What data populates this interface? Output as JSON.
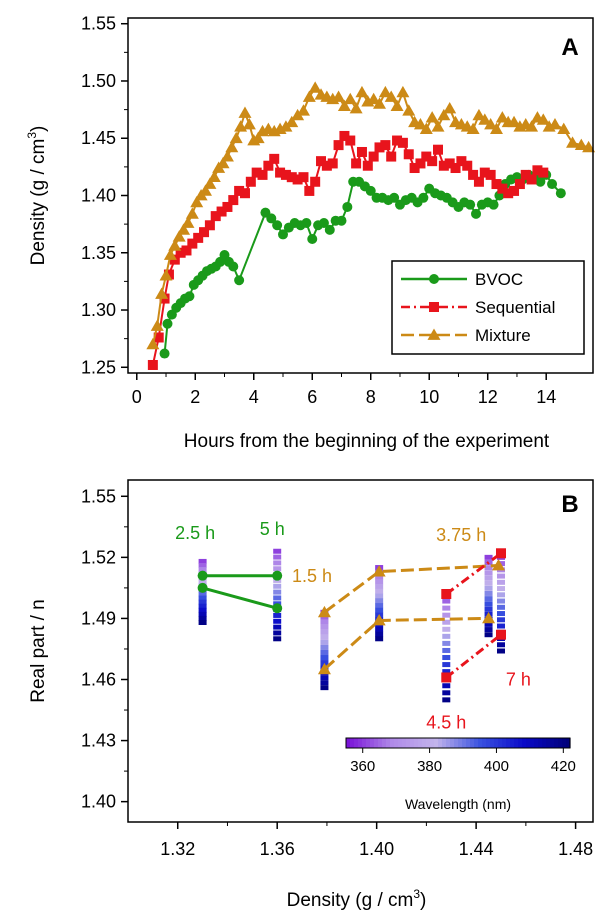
{
  "chart_data": [
    {
      "type": "line",
      "panel_label": "A",
      "xlabel": "Hours from the beginning of the experiment",
      "ylabel_main": "Density (g / cm",
      "ylabel_sup": "3",
      "ylabel_close": ")",
      "xlim": [
        -0.3,
        15.6
      ],
      "ylim": [
        1.245,
        1.555
      ],
      "xticks": [
        0,
        2,
        4,
        6,
        8,
        10,
        12,
        14
      ],
      "yticks": [
        1.25,
        1.3,
        1.35,
        1.4,
        1.45,
        1.5,
        1.55
      ],
      "ytick_labels": [
        "1.25",
        "1.30",
        "1.35",
        "1.40",
        "1.45",
        "1.50",
        "1.55"
      ],
      "legend_position": "bottom-right",
      "series": [
        {
          "name": "BVOC",
          "color": "#1a9a1a",
          "marker": "circle",
          "dash": "solid",
          "x": [
            0.95,
            1.05,
            1.2,
            1.35,
            1.5,
            1.65,
            1.8,
            1.95,
            2.1,
            2.25,
            2.4,
            2.55,
            2.7,
            2.85,
            3.0,
            3.15,
            3.3,
            3.5,
            4.4,
            4.6,
            4.8,
            5.0,
            5.2,
            5.4,
            5.6,
            5.8,
            6.0,
            6.2,
            6.4,
            6.6,
            6.8,
            7.0,
            7.2,
            7.4,
            7.6,
            7.8,
            8.0,
            8.2,
            8.4,
            8.6,
            8.8,
            9.0,
            9.2,
            9.4,
            9.6,
            9.8,
            10.0,
            10.2,
            10.4,
            10.6,
            10.8,
            11.0,
            11.2,
            11.4,
            11.6,
            11.8,
            12.0,
            12.2,
            12.4,
            12.6,
            12.8,
            13.0,
            13.2,
            13.4,
            13.6,
            13.8,
            14.0,
            14.2,
            14.5
          ],
          "y": [
            1.262,
            1.288,
            1.296,
            1.302,
            1.306,
            1.31,
            1.312,
            1.322,
            1.326,
            1.33,
            1.334,
            1.336,
            1.338,
            1.342,
            1.348,
            1.342,
            1.338,
            1.326,
            1.385,
            1.38,
            1.374,
            1.366,
            1.372,
            1.376,
            1.374,
            1.376,
            1.362,
            1.374,
            1.376,
            1.37,
            1.378,
            1.378,
            1.39,
            1.412,
            1.412,
            1.408,
            1.404,
            1.398,
            1.398,
            1.396,
            1.398,
            1.392,
            1.396,
            1.398,
            1.394,
            1.398,
            1.406,
            1.402,
            1.4,
            1.398,
            1.394,
            1.39,
            1.394,
            1.392,
            1.384,
            1.392,
            1.394,
            1.392,
            1.4,
            1.41,
            1.414,
            1.416,
            1.414,
            1.418,
            1.416,
            1.412,
            1.418,
            1.41,
            1.402
          ]
        },
        {
          "name": "Sequential",
          "color": "#e8141c",
          "marker": "square",
          "dash": "dashdot",
          "x": [
            0.55,
            0.75,
            0.95,
            1.1,
            1.3,
            1.5,
            1.7,
            1.9,
            2.1,
            2.3,
            2.5,
            2.7,
            2.9,
            3.1,
            3.3,
            3.5,
            3.7,
            3.9,
            4.1,
            4.3,
            4.5,
            4.7,
            4.9,
            5.1,
            5.3,
            5.5,
            5.7,
            5.9,
            6.1,
            6.3,
            6.5,
            6.7,
            6.9,
            7.1,
            7.3,
            7.5,
            7.7,
            7.9,
            8.1,
            8.3,
            8.5,
            8.7,
            8.9,
            9.1,
            9.3,
            9.5,
            9.7,
            9.9,
            10.1,
            10.3,
            10.5,
            10.7,
            10.9,
            11.1,
            11.3,
            11.5,
            11.7,
            11.9,
            12.1,
            12.3,
            12.5,
            12.7,
            12.9,
            13.1,
            13.3,
            13.5,
            13.7,
            13.9
          ],
          "y": [
            1.252,
            1.276,
            1.31,
            1.331,
            1.344,
            1.35,
            1.352,
            1.358,
            1.363,
            1.368,
            1.374,
            1.382,
            1.386,
            1.39,
            1.396,
            1.404,
            1.402,
            1.412,
            1.42,
            1.418,
            1.426,
            1.432,
            1.42,
            1.418,
            1.416,
            1.414,
            1.416,
            1.404,
            1.412,
            1.43,
            1.426,
            1.428,
            1.444,
            1.452,
            1.448,
            1.428,
            1.438,
            1.426,
            1.434,
            1.442,
            1.444,
            1.434,
            1.448,
            1.446,
            1.436,
            1.424,
            1.428,
            1.434,
            1.43,
            1.44,
            1.426,
            1.428,
            1.424,
            1.43,
            1.426,
            1.418,
            1.412,
            1.42,
            1.418,
            1.41,
            1.406,
            1.402,
            1.404,
            1.41,
            1.418,
            1.414,
            1.422,
            1.42
          ]
        },
        {
          "name": "Mixture",
          "color": "#cc8a16",
          "marker": "triangle",
          "dash": "longdash",
          "x": [
            0.55,
            0.7,
            0.85,
            1.0,
            1.15,
            1.3,
            1.45,
            1.6,
            1.75,
            1.9,
            2.05,
            2.2,
            2.35,
            2.5,
            2.65,
            2.8,
            2.95,
            3.1,
            3.25,
            3.4,
            3.55,
            3.7,
            3.85,
            4.0,
            4.15,
            4.3,
            4.5,
            4.7,
            4.9,
            5.1,
            5.3,
            5.5,
            5.7,
            5.9,
            6.1,
            6.3,
            6.5,
            6.7,
            6.9,
            7.1,
            7.3,
            7.5,
            7.7,
            7.9,
            8.1,
            8.3,
            8.5,
            8.7,
            8.9,
            9.1,
            9.3,
            9.5,
            9.7,
            9.9,
            10.1,
            10.3,
            10.5,
            10.7,
            10.9,
            11.1,
            11.3,
            11.5,
            11.7,
            11.9,
            12.1,
            12.3,
            12.5,
            12.7,
            12.9,
            13.1,
            13.3,
            13.5,
            13.7,
            13.9,
            14.1,
            14.3,
            14.6,
            14.9,
            15.2,
            15.45
          ],
          "y": [
            1.27,
            1.286,
            1.314,
            1.33,
            1.348,
            1.356,
            1.364,
            1.37,
            1.376,
            1.384,
            1.394,
            1.4,
            1.404,
            1.41,
            1.416,
            1.424,
            1.428,
            1.434,
            1.442,
            1.45,
            1.46,
            1.472,
            1.462,
            1.448,
            1.45,
            1.456,
            1.458,
            1.456,
            1.458,
            1.46,
            1.464,
            1.47,
            1.474,
            1.486,
            1.494,
            1.488,
            1.486,
            1.484,
            1.486,
            1.478,
            1.484,
            1.476,
            1.49,
            1.482,
            1.484,
            1.48,
            1.49,
            1.486,
            1.478,
            1.49,
            1.474,
            1.464,
            1.462,
            1.458,
            1.468,
            1.46,
            1.47,
            1.476,
            1.464,
            1.462,
            1.46,
            1.458,
            1.47,
            1.466,
            1.462,
            1.458,
            1.468,
            1.464,
            1.464,
            1.46,
            1.462,
            1.46,
            1.468,
            1.466,
            1.46,
            1.462,
            1.458,
            1.446,
            1.444,
            1.442
          ]
        }
      ]
    },
    {
      "type": "scatter",
      "panel_label": "B",
      "xlabel_main": "Density (g / cm",
      "xlabel_sup": "3",
      "xlabel_close": ")",
      "ylabel": "Real part / n",
      "xlim": [
        1.3,
        1.487
      ],
      "ylim": [
        1.39,
        1.558
      ],
      "xticks": [
        1.32,
        1.36,
        1.4,
        1.44,
        1.48
      ],
      "xtick_labels": [
        "1.32",
        "1.36",
        "1.40",
        "1.44",
        "1.48"
      ],
      "yticks": [
        1.4,
        1.43,
        1.46,
        1.49,
        1.52,
        1.55
      ],
      "ytick_labels": [
        "1.40",
        "1.43",
        "1.46",
        "1.49",
        "1.52",
        "1.55"
      ],
      "colorbar": {
        "label": "Wavelength (nm)",
        "ticks": [
          360,
          380,
          400,
          420
        ],
        "tick_labels": [
          "360",
          "380",
          "400",
          "420"
        ],
        "range": [
          355,
          422
        ],
        "colors": [
          "#7a14d8",
          "#b08ae8",
          "#c2b4ec",
          "#3a52e0",
          "#0a0ac8",
          "#00007a"
        ],
        "position": "bottom-right"
      },
      "wavelength_columns": [
        {
          "x": 1.33,
          "n_top": 1.518,
          "n_bottom": 1.488,
          "wl_low": 360,
          "wl_high": 420
        },
        {
          "x": 1.36,
          "n_top": 1.523,
          "n_bottom": 1.48,
          "wl_low": 360,
          "wl_high": 420
        },
        {
          "x": 1.379,
          "n_top": 1.493,
          "n_bottom": 1.456,
          "wl_low": 360,
          "wl_high": 420
        },
        {
          "x": 1.401,
          "n_top": 1.515,
          "n_bottom": 1.48,
          "wl_low": 360,
          "wl_high": 420
        },
        {
          "x": 1.428,
          "n_top": 1.502,
          "n_bottom": 1.45,
          "wl_low": 360,
          "wl_high": 420
        },
        {
          "x": 1.445,
          "n_top": 1.52,
          "n_bottom": 1.482,
          "wl_low": 360,
          "wl_high": 420
        },
        {
          "x": 1.45,
          "n_top": 1.52,
          "n_bottom": 1.474,
          "wl_low": 360,
          "wl_high": 420
        }
      ],
      "series": [
        {
          "color": "#1a9a1a",
          "marker": "circle",
          "dash": "solid",
          "x": [
            1.33,
            1.36
          ],
          "y": [
            1.511,
            1.511
          ]
        },
        {
          "color": "#1a9a1a",
          "marker": "circle",
          "dash": "solid",
          "x": [
            1.33,
            1.36
          ],
          "y": [
            1.505,
            1.495
          ]
        },
        {
          "color": "#cc8a16",
          "marker": "triangle",
          "dash": "longdash",
          "x": [
            1.379,
            1.401,
            1.449
          ],
          "y": [
            1.493,
            1.513,
            1.516
          ]
        },
        {
          "color": "#cc8a16",
          "marker": "triangle",
          "dash": "longdash",
          "x": [
            1.379,
            1.401,
            1.445
          ],
          "y": [
            1.465,
            1.489,
            1.49
          ]
        },
        {
          "color": "#e8141c",
          "marker": "square",
          "dash": "dashdot",
          "x": [
            1.428,
            1.45
          ],
          "y": [
            1.502,
            1.522
          ]
        },
        {
          "color": "#e8141c",
          "marker": "square",
          "dash": "dashdot",
          "x": [
            1.428,
            1.45
          ],
          "y": [
            1.461,
            1.482
          ]
        }
      ],
      "annotations": [
        {
          "text": "2.5 h",
          "color": "#1a9a1a",
          "x": 1.327,
          "y": 1.529
        },
        {
          "text": "5 h",
          "color": "#1a9a1a",
          "x": 1.358,
          "y": 1.531
        },
        {
          "text": "1.5 h",
          "color": "#cc8a16",
          "x": 1.374,
          "y": 1.508
        },
        {
          "text": "3.75 h",
          "color": "#cc8a16",
          "x": 1.434,
          "y": 1.528
        },
        {
          "text": "4.5 h",
          "color": "#e8141c",
          "x": 1.428,
          "y": 1.436
        },
        {
          "text": "7 h",
          "color": "#e8141c",
          "x": 1.457,
          "y": 1.457
        }
      ]
    }
  ]
}
